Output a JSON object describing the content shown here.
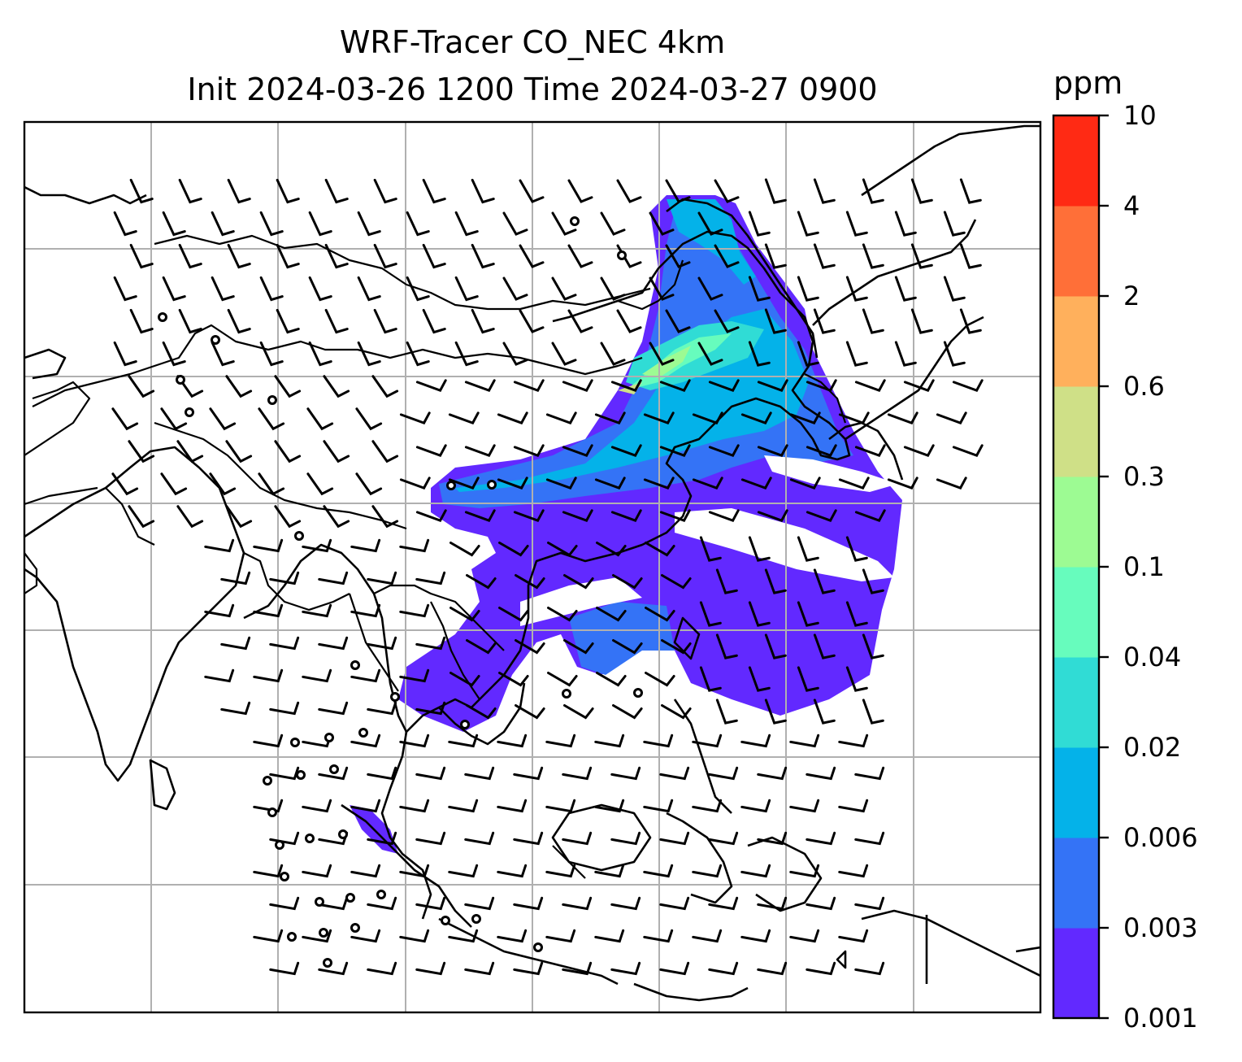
{
  "title": {
    "line1": "WRF-Tracer CO_NEC 4km",
    "line2": "Init 2024-03-26 1200 Time 2024-03-27 0900"
  },
  "colorbar": {
    "unit": "ppm",
    "levels": [
      "0.001",
      "0.003",
      "0.006",
      "0.02",
      "0.04",
      "0.1",
      "0.3",
      "0.6",
      "2",
      "4",
      "10"
    ],
    "colors": [
      "#6229ff",
      "#3473f6",
      "#04b2e9",
      "#30dcd5",
      "#67fcbd",
      "#9dfb93",
      "#cfe087",
      "#ffb05c",
      "#ff6f38",
      "#ff2a14"
    ]
  },
  "map": {
    "gridlines": true,
    "features": [
      "coastlines",
      "country-borders",
      "wind-barbs",
      "co-tracer-plume"
    ]
  }
}
